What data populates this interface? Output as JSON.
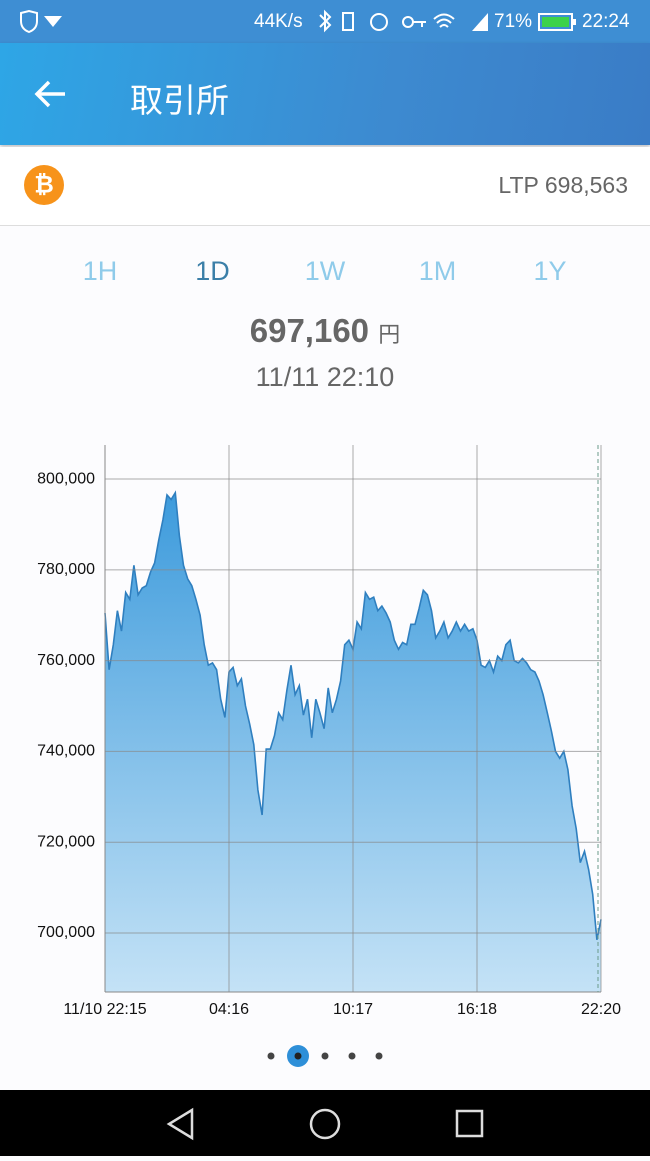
{
  "status_bar": {
    "speed": "44K/s",
    "battery": "71%",
    "time": "22:24"
  },
  "header": {
    "title": "取引所"
  },
  "ticker": {
    "ltp": "LTP 698,563"
  },
  "tabs": [
    "1H",
    "1D",
    "1W",
    "1M",
    "1Y"
  ],
  "selected_tab": 1,
  "price": {
    "value": "697,160",
    "unit": "円",
    "time": "11/11 22:10"
  },
  "chart_data": {
    "type": "area",
    "categories": [
      "11/10 22:15",
      null,
      null,
      null,
      null,
      null,
      null,
      null,
      null,
      null,
      null,
      null,
      null,
      null,
      null,
      null,
      null,
      null,
      null,
      null,
      null,
      null,
      null,
      null,
      null,
      null,
      null,
      null,
      null,
      null,
      "04:16",
      null,
      null,
      null,
      null,
      null,
      null,
      null,
      null,
      null,
      null,
      null,
      null,
      null,
      null,
      null,
      null,
      null,
      null,
      null,
      null,
      null,
      null,
      null,
      null,
      null,
      null,
      null,
      null,
      null,
      "10:17",
      null,
      null,
      null,
      null,
      null,
      null,
      null,
      null,
      null,
      null,
      null,
      null,
      null,
      null,
      null,
      null,
      null,
      null,
      null,
      null,
      null,
      null,
      null,
      null,
      null,
      null,
      null,
      null,
      null,
      "16:18",
      null,
      null,
      null,
      null,
      null,
      null,
      null,
      null,
      null,
      null,
      null,
      null,
      null,
      null,
      null,
      null,
      null,
      null,
      null,
      null,
      null,
      null,
      null,
      null,
      null,
      null,
      null,
      null,
      null,
      "22:20"
    ],
    "values": [
      770500,
      758000,
      763500,
      771000,
      766500,
      775000,
      773500,
      781000,
      774500,
      776000,
      776500,
      779500,
      781500,
      786500,
      791000,
      796500,
      795500,
      797000,
      787500,
      781000,
      778000,
      776500,
      773500,
      770000,
      763500,
      759000,
      759500,
      758000,
      751500,
      747500,
      757500,
      758500,
      754500,
      756000,
      750000,
      746000,
      741500,
      731500,
      726000,
      740500,
      740500,
      743500,
      748500,
      747000,
      753500,
      759000,
      752500,
      754500,
      748000,
      751500,
      743000,
      751500,
      748500,
      745000,
      754000,
      748500,
      751500,
      755500,
      763500,
      764500,
      762500,
      768500,
      767000,
      775000,
      773500,
      774000,
      771000,
      772000,
      770500,
      768500,
      764500,
      762500,
      764000,
      763500,
      768000,
      768000,
      771500,
      775500,
      774500,
      771000,
      765000,
      766500,
      768500,
      765000,
      766500,
      768500,
      766500,
      768000,
      766500,
      767000,
      764500,
      759000,
      758500,
      760000,
      757500,
      761000,
      760000,
      763500,
      764500,
      760000,
      759500,
      760500,
      759500,
      758000,
      757500,
      755500,
      752500,
      748500,
      744500,
      740000,
      738500,
      740000,
      736000,
      728000,
      723000,
      715500,
      718000,
      714000,
      708500,
      698500,
      703000
    ],
    "ylim": [
      687000,
      807500
    ],
    "yticks": [
      {
        "value": 700000,
        "label": "700,000"
      },
      {
        "value": 720000,
        "label": "720,000"
      },
      {
        "value": 740000,
        "label": "740,000"
      },
      {
        "value": 760000,
        "label": "760,000"
      },
      {
        "value": 780000,
        "label": "780,000"
      },
      {
        "value": 800000,
        "label": "800,000"
      }
    ],
    "grid": true,
    "color": "#2f7fbf",
    "fill_top": "#3d9bdc",
    "fill_bottom": "#c4e2f6"
  },
  "pager": {
    "count": 5,
    "active": 1
  }
}
